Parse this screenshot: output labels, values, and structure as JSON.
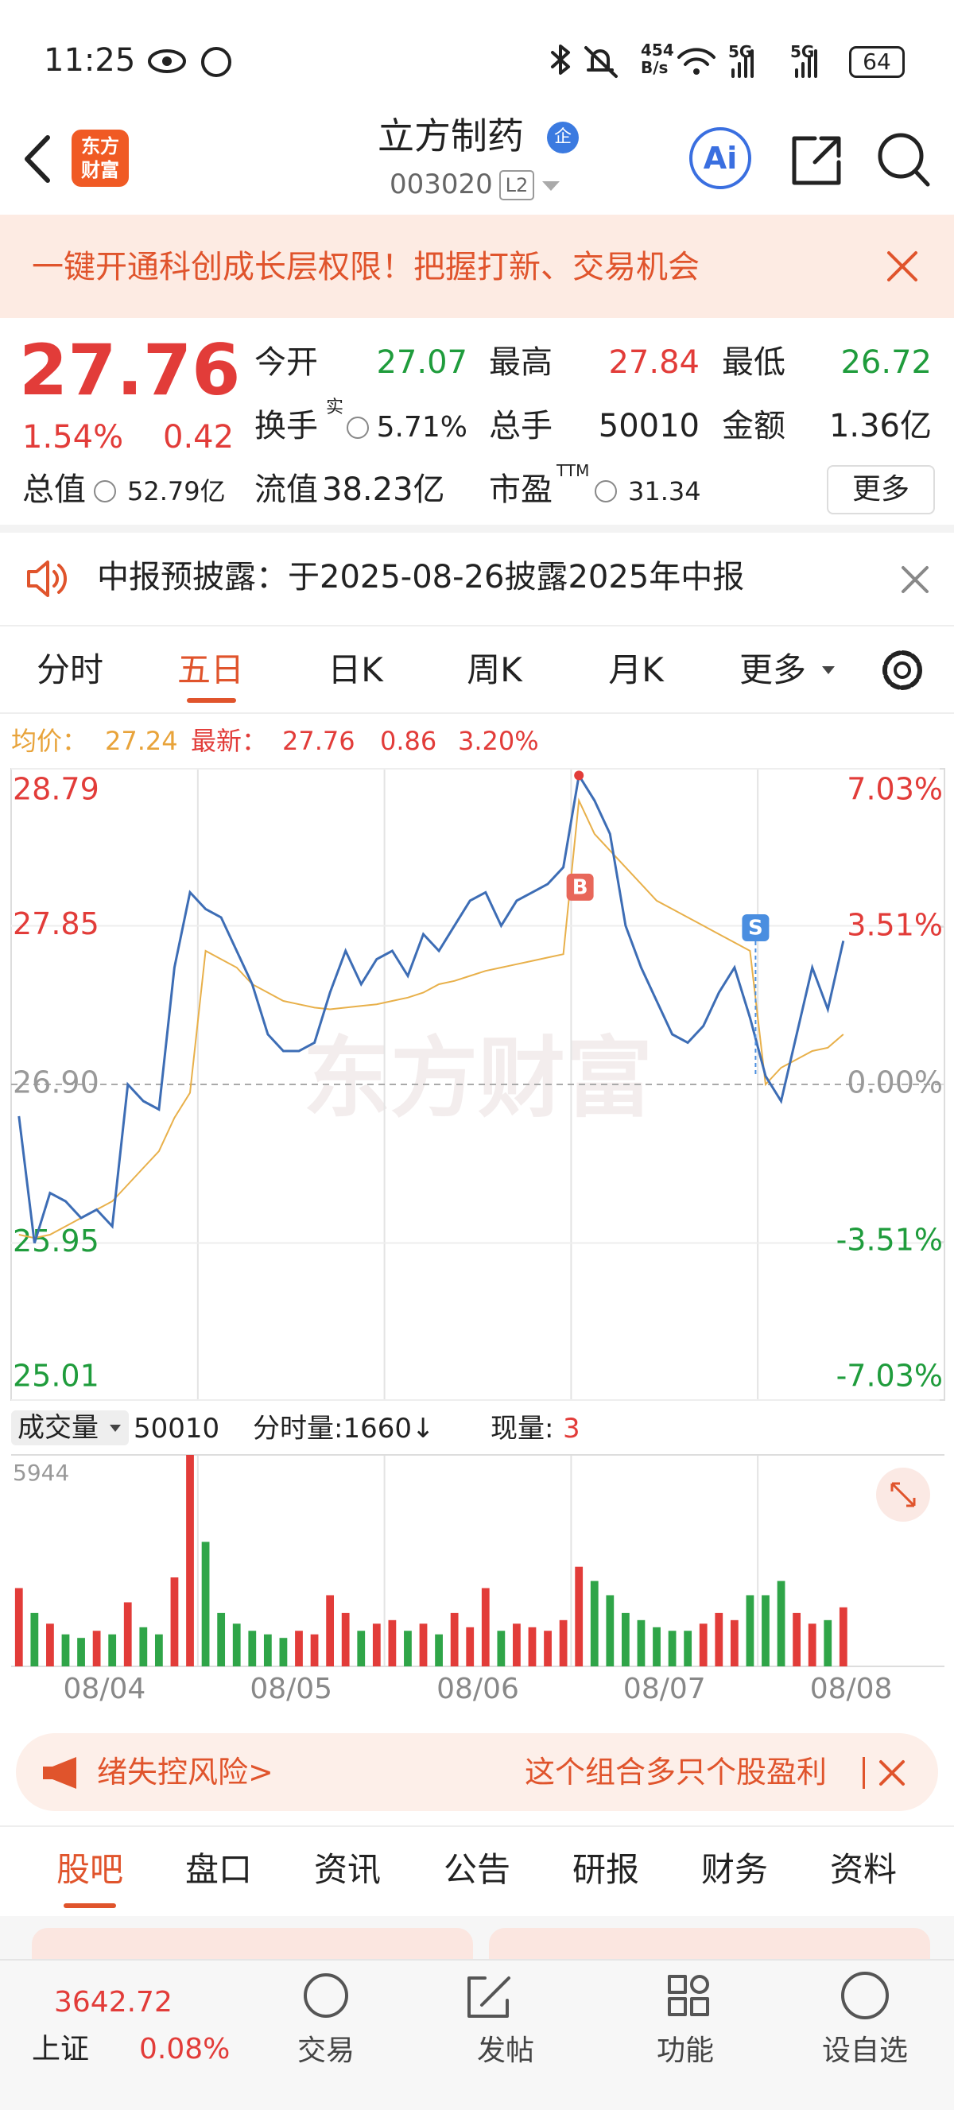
{
  "status_bar": {
    "time": "11:25",
    "net_speed": "454",
    "net_unit": "B/s",
    "signal_1": "5G",
    "signal_2": "5G",
    "battery": "64"
  },
  "header": {
    "logo": [
      "东方",
      "财富"
    ],
    "title": "立方制药",
    "badge": "企",
    "code": "003020",
    "level": "L2",
    "ai": "Ai"
  },
  "banner": {
    "text": "一键开通科创成长层权限！把握打新、交易机会"
  },
  "quote": {
    "price": "27.76",
    "change_pct": "1.54%",
    "change": "0.42",
    "open_label": "今开",
    "open": "27.07",
    "high_label": "最高",
    "high": "27.84",
    "low_label": "最低",
    "low": "26.72",
    "turnover_label": "换手",
    "turnover_sup": "实",
    "turnover": "5.71%",
    "volume_label": "总手",
    "volume": "50010",
    "amount_label": "金额",
    "amount": "1.36亿",
    "mcap_label": "总值",
    "mcap": "52.79亿",
    "float_label": "流值",
    "float": "38.23亿",
    "pe_label": "市盈",
    "pe_sup": "TTM",
    "pe": "31.34",
    "more": "更多"
  },
  "notice": {
    "text": "中报预披露：于2025-08-26披露2025年中报"
  },
  "chart_tabs": [
    "分时",
    "五日",
    "日K",
    "周K",
    "月K",
    "更多"
  ],
  "info_line": {
    "avg": "27.24",
    "last": "27.76",
    "change": "0.86",
    "change_pct": "3.20%"
  },
  "chart_data": [
    {
      "type": "line",
      "watermark": "东方财富",
      "markers": [
        "B",
        "S"
      ],
      "series": [
        {
          "name": "最新：",
          "color": "#3d6db5",
          "values": [
            26.71,
            25.95,
            26.25,
            26.2,
            26.1,
            26.15,
            26.05,
            26.9,
            26.8,
            26.75,
            27.6,
            28.05,
            27.95,
            27.9,
            27.7,
            27.5,
            27.2,
            27.1,
            27.1,
            27.15,
            27.45,
            27.7,
            27.5,
            27.65,
            27.7,
            27.55,
            27.8,
            27.7,
            27.85,
            28.0,
            28.05,
            27.85,
            28.0,
            28.05,
            28.1,
            28.2,
            28.75,
            28.6,
            28.4,
            27.85,
            27.6,
            27.4,
            27.2,
            27.15,
            27.25,
            27.45,
            27.6,
            27.3,
            26.95,
            26.8,
            27.2,
            27.6,
            27.35,
            27.76,
            null,
            null,
            null,
            null,
            null,
            null
          ]
        },
        {
          "name": "均价：",
          "color": "#e8b04a",
          "values": [
            26.0,
            25.98,
            26.0,
            26.05,
            26.1,
            26.15,
            26.2,
            26.3,
            26.4,
            26.5,
            26.7,
            26.85,
            27.7,
            27.65,
            27.6,
            27.5,
            27.45,
            27.4,
            27.38,
            27.36,
            27.35,
            27.36,
            27.37,
            27.38,
            27.4,
            27.42,
            27.45,
            27.5,
            27.52,
            27.55,
            27.58,
            27.6,
            27.62,
            27.64,
            27.66,
            27.68,
            28.6,
            28.4,
            28.3,
            28.2,
            28.1,
            28.0,
            27.95,
            27.9,
            27.85,
            27.8,
            27.75,
            27.7,
            26.9,
            27.0,
            27.05,
            27.1,
            27.12,
            27.2,
            null,
            null,
            null,
            null,
            null,
            null
          ]
        }
      ],
      "ylim": [
        25.01,
        28.79
      ],
      "yticks": [
        28.79,
        27.85,
        {
          "value": 26.9,
          "label": "26.90"
        },
        25.95,
        25.01
      ],
      "y2lim": [
        -7.03,
        7.03
      ],
      "y2ticks": [
        {
          "value": 7.03,
          "label": "7.03%"
        },
        {
          "value": 3.51,
          "label": "3.51%"
        },
        {
          "value": 0,
          "label": "0.00%"
        },
        {
          "value": -3.51,
          "label": "-3.51%"
        },
        {
          "value": -7.03,
          "label": "-7.03%"
        }
      ],
      "grid": true
    },
    {
      "type": "bar",
      "values": [
        2200,
        1500,
        1200,
        900,
        800,
        1000,
        900,
        1800,
        1100,
        900,
        2500,
        5944,
        3500,
        1500,
        1200,
        1000,
        900,
        800,
        1000,
        900,
        2000,
        1500,
        1000,
        1200,
        1300,
        1000,
        1200,
        900,
        1500,
        1100,
        2200,
        1000,
        1200,
        1100,
        1000,
        1300,
        2800,
        2400,
        2000,
        1500,
        1300,
        1100,
        1000,
        1000,
        1200,
        1500,
        1300,
        2000,
        2000,
        2400,
        1500,
        1200,
        1300,
        1660,
        null,
        null,
        null,
        null,
        null,
        null
      ],
      "ylim": [
        0,
        5944
      ],
      "yticks": [
        5944
      ],
      "xlabels": [
        "08/04",
        "08/05",
        "08/06",
        "08/07",
        "08/08"
      ]
    }
  ],
  "volume_header": {
    "label": "成交量",
    "total": "50010",
    "tick": "分时量:1660↓",
    "last_label": "现量:",
    "last": "3"
  },
  "risk_banner": {
    "left": "绪失控风险>",
    "right": "这个组合多只个股盈利"
  },
  "section_tabs": [
    "股吧",
    "盘口",
    "资讯",
    "公告",
    "研报",
    "财务",
    "资料"
  ],
  "bottom_nav": {
    "index_value": "3642.72",
    "index_name": "上证",
    "index_change": "0.08%",
    "items": [
      "交易",
      "发帖",
      "功能",
      "设自选"
    ]
  }
}
